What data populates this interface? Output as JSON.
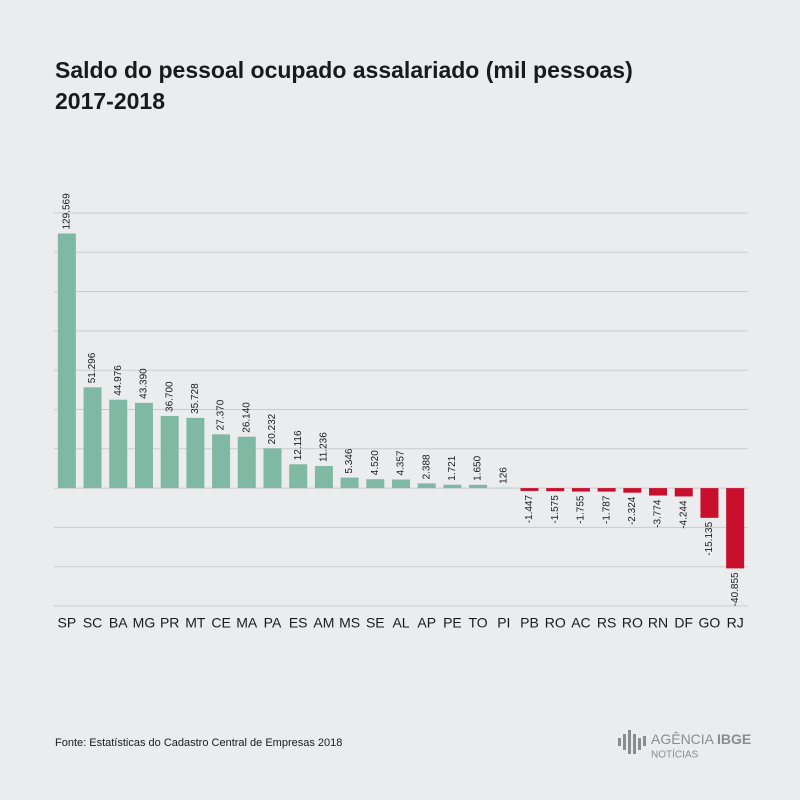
{
  "chart_data": {
    "type": "bar",
    "title": "Saldo do pessoal ocupado assalariado (mil pessoas)",
    "subtitle": "2017-2018",
    "source": "Fonte: Estatísticas do Cadastro Central de Empresas 2018",
    "brand": {
      "name": "AGÊNCIA",
      "name_bold": "IBGE",
      "sub": "NOTÍCIAS"
    },
    "categories": [
      "SP",
      "SC",
      "BA",
      "MG",
      "PR",
      "MT",
      "CE",
      "MA",
      "PA",
      "ES",
      "AM",
      "MS",
      "SE",
      "AL",
      "AP",
      "PE",
      "TO",
      "PI",
      "PB",
      "RO",
      "AC",
      "RS",
      "RO",
      "RN",
      "DF",
      "GO",
      "RJ"
    ],
    "values": [
      129569,
      51296,
      44976,
      43390,
      36700,
      35728,
      27370,
      26140,
      20232,
      12116,
      11236,
      5346,
      4520,
      4357,
      2388,
      1721,
      1650,
      126,
      -1447,
      -1575,
      -1755,
      -1787,
      -2324,
      -3774,
      -4244,
      -15135,
      -40855
    ],
    "value_labels": [
      "129.569",
      "51.296",
      "44.976",
      "43.390",
      "36.700",
      "35.728",
      "27.370",
      "26.140",
      "20.232",
      "12.116",
      "11.236",
      "5.346",
      "4.520",
      "4.357",
      "2.388",
      "1.721",
      "1.650",
      "126",
      "-1.447",
      "-1.575",
      "-1.755",
      "-1.787",
      "-2.324",
      "-3.774",
      "-4.244",
      "-15.135",
      "-40.855"
    ],
    "color": "#80b9a3",
    "negative_color": "#c8102e",
    "ylim": [
      -60000,
      140000
    ],
    "yticks": [
      -60000,
      -40000,
      -20000,
      0,
      20000,
      40000,
      60000,
      80000,
      100000,
      120000,
      140000
    ],
    "grid": true
  }
}
